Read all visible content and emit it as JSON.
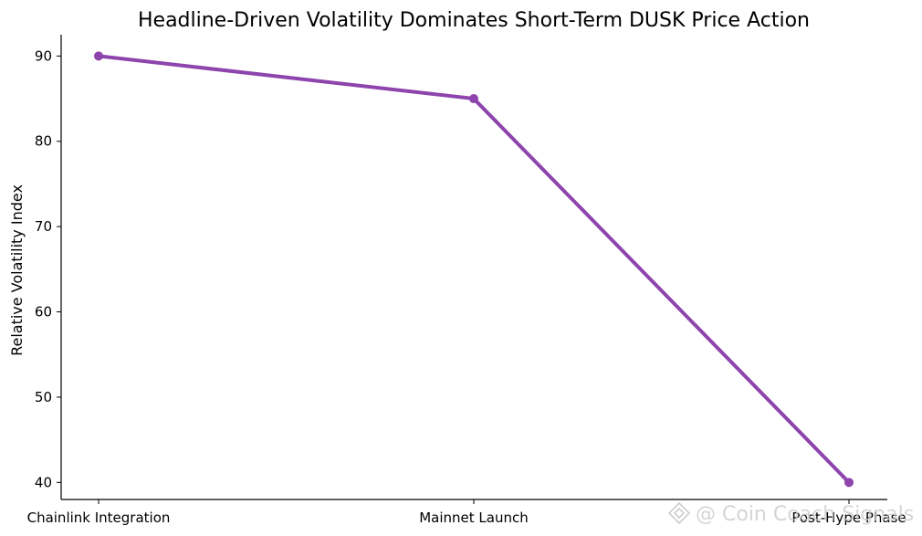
{
  "chart_data": {
    "type": "line",
    "title": "Headline-Driven Volatility Dominates Short-Term DUSK Price Action",
    "xlabel": "",
    "ylabel": "Relative Volatility Index",
    "categories": [
      "Chainlink Integration",
      "Mainnet Launch",
      "Post-Hype Phase"
    ],
    "series": [
      {
        "values": [
          90,
          85,
          40
        ],
        "color": "#8e44ad"
      }
    ],
    "yticks": [
      40,
      50,
      60,
      70,
      80,
      90
    ],
    "ylim": [
      38,
      92.5
    ],
    "grid": false,
    "legend": "none",
    "marker": "circle"
  },
  "watermark": {
    "text": "@ Coin Coach Signals",
    "icon": "binance-diamond-icon"
  }
}
